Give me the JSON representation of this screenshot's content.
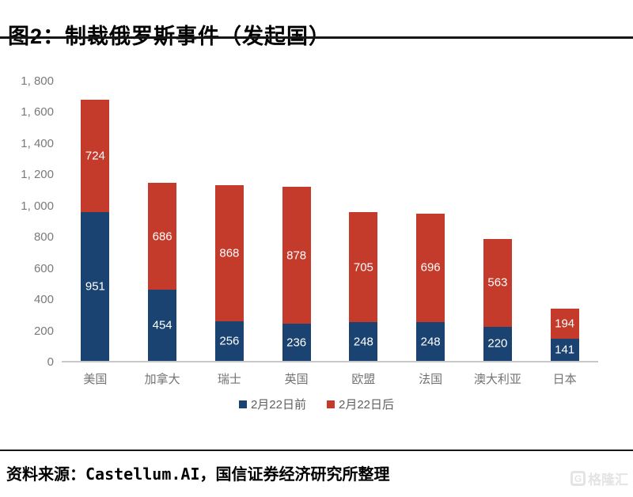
{
  "page": {
    "title": "图2：制裁俄罗斯事件（发起国）",
    "source": "资料来源：Castellum.AI，国信证券经济研究所整理",
    "watermark": {
      "text": "格隆汇",
      "icon": "G"
    }
  },
  "chart_data": {
    "type": "bar",
    "stacked": true,
    "title": "图2：制裁俄罗斯事件（发起国）",
    "categories": [
      "美国",
      "加拿大",
      "瑞士",
      "英国",
      "欧盟",
      "法国",
      "澳大利亚",
      "日本"
    ],
    "series": [
      {
        "name": "2月22日前",
        "color": "#1b4371",
        "values": [
          951,
          454,
          256,
          236,
          248,
          248,
          220,
          141
        ]
      },
      {
        "name": "2月22日后",
        "color": "#c43a2b",
        "values": [
          724,
          686,
          868,
          878,
          705,
          696,
          563,
          194
        ]
      }
    ],
    "totals": [
      1675,
      1140,
      1124,
      1114,
      953,
      944,
      783,
      335
    ],
    "xlabel": "",
    "ylabel": "",
    "ylim": [
      0,
      1800
    ],
    "yticks": [
      0,
      200,
      400,
      600,
      800,
      1000,
      1200,
      1400,
      1600,
      1800
    ],
    "ytick_labels": [
      "0",
      "200",
      "400",
      "600",
      "800",
      "1, 000",
      "1, 200",
      "1, 400",
      "1, 600",
      "1, 800"
    ],
    "grid": false,
    "legend_position": "bottom",
    "bar_value_labels": true,
    "value_label_color": "#ffffff",
    "axis_text_color": "#7a7a7a",
    "baseline_color": "#c8c8c8"
  }
}
